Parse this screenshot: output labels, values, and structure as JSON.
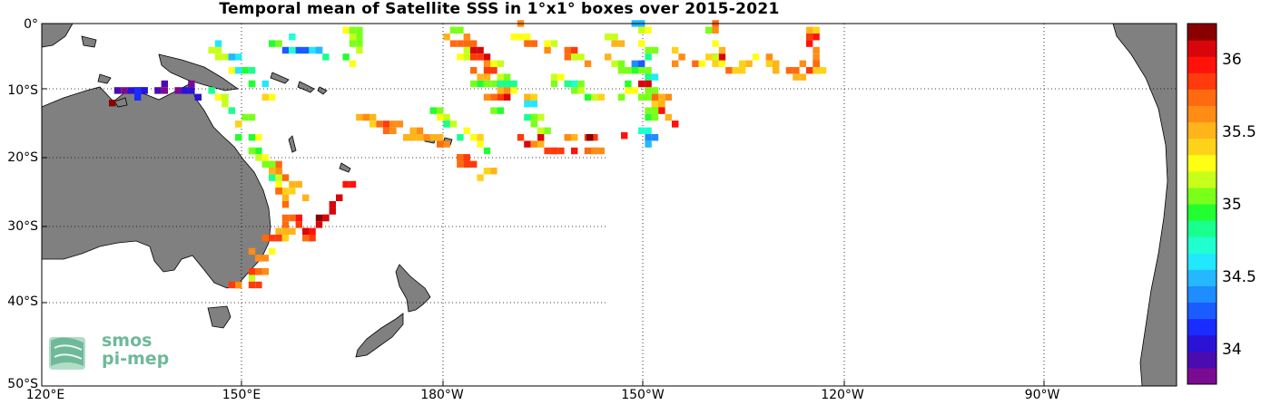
{
  "title": "Temporal mean of Satellite SSS in 1°x1° boxes over 2015-2021",
  "lat_labels": [
    "0°",
    "10°S",
    "20°S",
    "30°S",
    "40°S",
    "50°S"
  ],
  "lon_labels": [
    "120°E",
    "150°E",
    "180°W",
    "150°W",
    "120°W",
    "90°W"
  ],
  "colorbar_labels": [
    "36",
    "35.5",
    "35",
    "34.5",
    "34"
  ],
  "logo": {
    "line1": "smos",
    "line2": "pi-mep"
  },
  "colors": {
    "land": "#808080",
    "colorbar": [
      "#7b0a93",
      "#4b0bb0",
      "#2a12d6",
      "#1a2cff",
      "#1a5cff",
      "#1f8cff",
      "#25b8ff",
      "#22e8ff",
      "#1fffd0",
      "#19ff90",
      "#22ff30",
      "#7aff1a",
      "#c8ff1a",
      "#ffff14",
      "#ffd21a",
      "#ffb41a",
      "#ff8c14",
      "#ff6a10",
      "#ff3a0c",
      "#ff120a",
      "#d8060a",
      "#8a0000"
    ]
  }
}
